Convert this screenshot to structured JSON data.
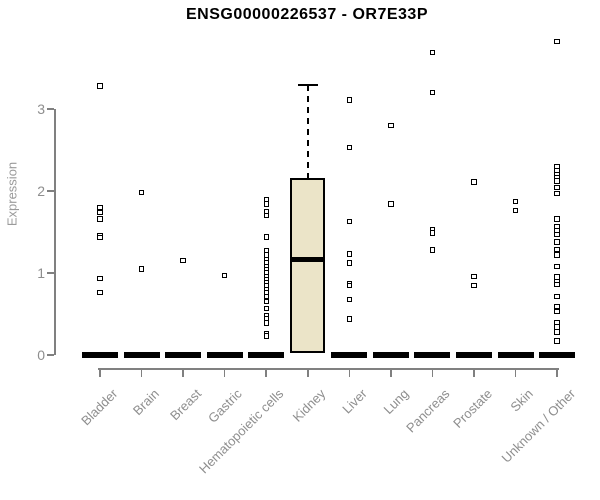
{
  "chart_data": {
    "type": "boxplot",
    "title": "ENSG00000226537 - OR7E33P",
    "ylabel": "Expression",
    "xlabel": "",
    "yticks": [
      0,
      1,
      2,
      3
    ],
    "ylim": [
      0,
      3.9
    ],
    "grid": false,
    "legend": "none",
    "categories": [
      "Bladder",
      "Brain",
      "Breast",
      "Gastric",
      "Hematopoietic cells",
      "Kidney",
      "Liver",
      "Lung",
      "Pancreas",
      "Prostate",
      "Skin",
      "Unknown / Other"
    ],
    "series": [
      {
        "category": "Bladder",
        "box": {
          "q1": 0,
          "median": 0,
          "q3": 0
        },
        "points": [
          3.28,
          1.8,
          1.74,
          1.66,
          1.45,
          1.43,
          0.93,
          0.76
        ]
      },
      {
        "category": "Brain",
        "box": {
          "q1": 0,
          "median": 0,
          "q3": 0
        },
        "points": [
          1.98,
          1.05
        ]
      },
      {
        "category": "Breast",
        "box": {
          "q1": 0,
          "median": 0,
          "q3": 0
        },
        "points": [
          1.15
        ]
      },
      {
        "category": "Gastric",
        "box": {
          "q1": 0,
          "median": 0,
          "q3": 0
        },
        "points": [
          0.97
        ]
      },
      {
        "category": "Hematopoietic cells",
        "box": {
          "q1": 0,
          "median": 0,
          "q3": 0
        },
        "points": [
          1.89,
          1.84,
          1.75,
          1.7,
          1.44,
          1.27,
          1.22,
          1.16,
          1.12,
          1.08,
          1.04,
          1.0,
          0.96,
          0.92,
          0.88,
          0.84,
          0.8,
          0.76,
          0.71,
          0.65,
          0.57,
          0.48,
          0.44,
          0.39,
          0.26,
          0.23
        ]
      },
      {
        "category": "Kidney",
        "box": {
          "q1": 0.02,
          "median": 1.16,
          "q3": 2.16,
          "whisker_high": 3.29
        },
        "points": []
      },
      {
        "category": "Liver",
        "box": {
          "q1": 0,
          "median": 0,
          "q3": 0
        },
        "points": [
          3.11,
          2.53,
          1.63,
          1.23,
          1.12,
          0.87,
          0.85,
          0.68,
          0.44
        ]
      },
      {
        "category": "Lung",
        "box": {
          "q1": 0,
          "median": 0,
          "q3": 0
        },
        "points": [
          2.8,
          1.84
        ]
      },
      {
        "category": "Pancreas",
        "box": {
          "q1": 0,
          "median": 0,
          "q3": 0
        },
        "points": [
          3.69,
          3.2,
          1.53,
          1.49,
          1.28
        ]
      },
      {
        "category": "Prostate",
        "box": {
          "q1": 0,
          "median": 0,
          "q3": 0
        },
        "points": [
          2.11,
          0.96,
          0.85
        ]
      },
      {
        "category": "Skin",
        "box": {
          "q1": 0,
          "median": 0,
          "q3": 0
        },
        "points": [
          1.87,
          1.76
        ]
      },
      {
        "category": "Unknown / Other",
        "box": {
          "q1": 0,
          "median": 0,
          "q3": 0
        },
        "points": [
          3.82,
          2.3,
          2.25,
          2.2,
          2.16,
          2.12,
          2.04,
          1.97,
          1.66,
          1.56,
          1.51,
          1.47,
          1.38,
          1.29,
          1.22,
          1.08,
          0.95,
          0.89,
          0.86,
          0.71,
          0.59,
          0.53,
          0.4,
          0.34,
          0.28,
          0.17
        ]
      }
    ],
    "colors": {
      "box_fill": "#EBE4C8",
      "box_border": "#000000",
      "median": "#000000",
      "collapsed_bar": "#000000",
      "point_border": "#000000",
      "point_fill": "#ffffff",
      "axis_line": "#808080",
      "tick_label": "#8e8e8e",
      "axis_title": "#9a9a9a",
      "title": "#000000",
      "background": "#ffffff"
    }
  }
}
